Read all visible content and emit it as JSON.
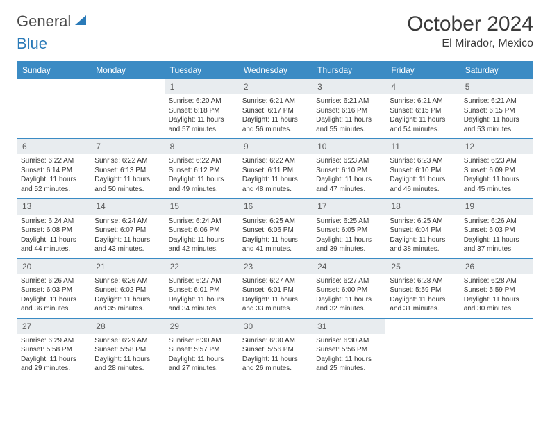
{
  "logo": {
    "part1": "General",
    "part2": "Blue"
  },
  "title": "October 2024",
  "location": "El Mirador, Mexico",
  "colors": {
    "header_bg": "#3b8bc4",
    "header_text": "#ffffff",
    "daynum_bg": "#e8ecef",
    "week_border": "#3b8bc4",
    "body_text": "#333333",
    "logo_gray": "#4a4a4a",
    "logo_blue": "#2a7ab8"
  },
  "typography": {
    "title_fontsize": 30,
    "location_fontsize": 16,
    "dow_fontsize": 12,
    "daynum_fontsize": 12,
    "body_fontsize": 10
  },
  "dow": [
    "Sunday",
    "Monday",
    "Tuesday",
    "Wednesday",
    "Thursday",
    "Friday",
    "Saturday"
  ],
  "weeks": [
    [
      {
        "n": "",
        "sr": "",
        "ss": "",
        "dl": ""
      },
      {
        "n": "",
        "sr": "",
        "ss": "",
        "dl": ""
      },
      {
        "n": "1",
        "sr": "Sunrise: 6:20 AM",
        "ss": "Sunset: 6:18 PM",
        "dl": "Daylight: 11 hours and 57 minutes."
      },
      {
        "n": "2",
        "sr": "Sunrise: 6:21 AM",
        "ss": "Sunset: 6:17 PM",
        "dl": "Daylight: 11 hours and 56 minutes."
      },
      {
        "n": "3",
        "sr": "Sunrise: 6:21 AM",
        "ss": "Sunset: 6:16 PM",
        "dl": "Daylight: 11 hours and 55 minutes."
      },
      {
        "n": "4",
        "sr": "Sunrise: 6:21 AM",
        "ss": "Sunset: 6:15 PM",
        "dl": "Daylight: 11 hours and 54 minutes."
      },
      {
        "n": "5",
        "sr": "Sunrise: 6:21 AM",
        "ss": "Sunset: 6:15 PM",
        "dl": "Daylight: 11 hours and 53 minutes."
      }
    ],
    [
      {
        "n": "6",
        "sr": "Sunrise: 6:22 AM",
        "ss": "Sunset: 6:14 PM",
        "dl": "Daylight: 11 hours and 52 minutes."
      },
      {
        "n": "7",
        "sr": "Sunrise: 6:22 AM",
        "ss": "Sunset: 6:13 PM",
        "dl": "Daylight: 11 hours and 50 minutes."
      },
      {
        "n": "8",
        "sr": "Sunrise: 6:22 AM",
        "ss": "Sunset: 6:12 PM",
        "dl": "Daylight: 11 hours and 49 minutes."
      },
      {
        "n": "9",
        "sr": "Sunrise: 6:22 AM",
        "ss": "Sunset: 6:11 PM",
        "dl": "Daylight: 11 hours and 48 minutes."
      },
      {
        "n": "10",
        "sr": "Sunrise: 6:23 AM",
        "ss": "Sunset: 6:10 PM",
        "dl": "Daylight: 11 hours and 47 minutes."
      },
      {
        "n": "11",
        "sr": "Sunrise: 6:23 AM",
        "ss": "Sunset: 6:10 PM",
        "dl": "Daylight: 11 hours and 46 minutes."
      },
      {
        "n": "12",
        "sr": "Sunrise: 6:23 AM",
        "ss": "Sunset: 6:09 PM",
        "dl": "Daylight: 11 hours and 45 minutes."
      }
    ],
    [
      {
        "n": "13",
        "sr": "Sunrise: 6:24 AM",
        "ss": "Sunset: 6:08 PM",
        "dl": "Daylight: 11 hours and 44 minutes."
      },
      {
        "n": "14",
        "sr": "Sunrise: 6:24 AM",
        "ss": "Sunset: 6:07 PM",
        "dl": "Daylight: 11 hours and 43 minutes."
      },
      {
        "n": "15",
        "sr": "Sunrise: 6:24 AM",
        "ss": "Sunset: 6:06 PM",
        "dl": "Daylight: 11 hours and 42 minutes."
      },
      {
        "n": "16",
        "sr": "Sunrise: 6:25 AM",
        "ss": "Sunset: 6:06 PM",
        "dl": "Daylight: 11 hours and 41 minutes."
      },
      {
        "n": "17",
        "sr": "Sunrise: 6:25 AM",
        "ss": "Sunset: 6:05 PM",
        "dl": "Daylight: 11 hours and 39 minutes."
      },
      {
        "n": "18",
        "sr": "Sunrise: 6:25 AM",
        "ss": "Sunset: 6:04 PM",
        "dl": "Daylight: 11 hours and 38 minutes."
      },
      {
        "n": "19",
        "sr": "Sunrise: 6:26 AM",
        "ss": "Sunset: 6:03 PM",
        "dl": "Daylight: 11 hours and 37 minutes."
      }
    ],
    [
      {
        "n": "20",
        "sr": "Sunrise: 6:26 AM",
        "ss": "Sunset: 6:03 PM",
        "dl": "Daylight: 11 hours and 36 minutes."
      },
      {
        "n": "21",
        "sr": "Sunrise: 6:26 AM",
        "ss": "Sunset: 6:02 PM",
        "dl": "Daylight: 11 hours and 35 minutes."
      },
      {
        "n": "22",
        "sr": "Sunrise: 6:27 AM",
        "ss": "Sunset: 6:01 PM",
        "dl": "Daylight: 11 hours and 34 minutes."
      },
      {
        "n": "23",
        "sr": "Sunrise: 6:27 AM",
        "ss": "Sunset: 6:01 PM",
        "dl": "Daylight: 11 hours and 33 minutes."
      },
      {
        "n": "24",
        "sr": "Sunrise: 6:27 AM",
        "ss": "Sunset: 6:00 PM",
        "dl": "Daylight: 11 hours and 32 minutes."
      },
      {
        "n": "25",
        "sr": "Sunrise: 6:28 AM",
        "ss": "Sunset: 5:59 PM",
        "dl": "Daylight: 11 hours and 31 minutes."
      },
      {
        "n": "26",
        "sr": "Sunrise: 6:28 AM",
        "ss": "Sunset: 5:59 PM",
        "dl": "Daylight: 11 hours and 30 minutes."
      }
    ],
    [
      {
        "n": "27",
        "sr": "Sunrise: 6:29 AM",
        "ss": "Sunset: 5:58 PM",
        "dl": "Daylight: 11 hours and 29 minutes."
      },
      {
        "n": "28",
        "sr": "Sunrise: 6:29 AM",
        "ss": "Sunset: 5:58 PM",
        "dl": "Daylight: 11 hours and 28 minutes."
      },
      {
        "n": "29",
        "sr": "Sunrise: 6:30 AM",
        "ss": "Sunset: 5:57 PM",
        "dl": "Daylight: 11 hours and 27 minutes."
      },
      {
        "n": "30",
        "sr": "Sunrise: 6:30 AM",
        "ss": "Sunset: 5:56 PM",
        "dl": "Daylight: 11 hours and 26 minutes."
      },
      {
        "n": "31",
        "sr": "Sunrise: 6:30 AM",
        "ss": "Sunset: 5:56 PM",
        "dl": "Daylight: 11 hours and 25 minutes."
      },
      {
        "n": "",
        "sr": "",
        "ss": "",
        "dl": ""
      },
      {
        "n": "",
        "sr": "",
        "ss": "",
        "dl": ""
      }
    ]
  ]
}
